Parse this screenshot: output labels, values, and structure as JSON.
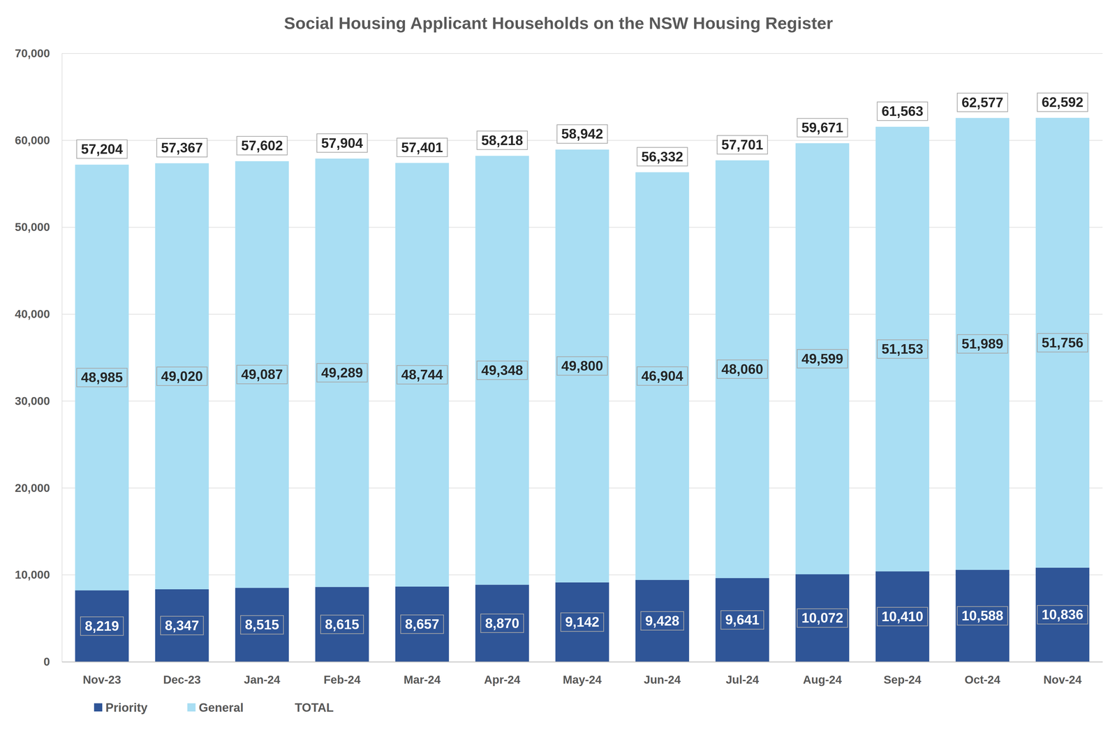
{
  "chart_data": {
    "type": "bar",
    "title": "Social Housing Applicant Households on the NSW Housing Register",
    "categories": [
      "Nov-23",
      "Dec-23",
      "Jan-24",
      "Feb-24",
      "Mar-24",
      "Apr-24",
      "May-24",
      "Jun-24",
      "Jul-24",
      "Aug-24",
      "Sep-24",
      "Oct-24",
      "Nov-24"
    ],
    "series": [
      {
        "name": "Priority",
        "color": "#2f5597",
        "values": [
          8219,
          8347,
          8515,
          8615,
          8657,
          8870,
          9142,
          9428,
          9641,
          10072,
          10410,
          10588,
          10836
        ],
        "value_labels": [
          "8,219",
          "8,347",
          "8,515",
          "8,615",
          "8,657",
          "8,870",
          "9,142",
          "9,428",
          "9,641",
          "10,072",
          "10,410",
          "10,588",
          "10,836"
        ]
      },
      {
        "name": "General",
        "color": "#a9def3",
        "values": [
          48985,
          49020,
          49087,
          49289,
          48744,
          49348,
          49800,
          46904,
          48060,
          49599,
          51153,
          51989,
          51756
        ],
        "value_labels": [
          "48,985",
          "49,020",
          "49,087",
          "49,289",
          "48,744",
          "49,348",
          "49,800",
          "46,904",
          "48,060",
          "49,599",
          "51,153",
          "51,989",
          "51,756"
        ]
      },
      {
        "name": "TOTAL",
        "type": "line",
        "line_style": "none",
        "marker": "none",
        "values": [
          57204,
          57367,
          57602,
          57904,
          57401,
          58218,
          58942,
          56332,
          57701,
          59671,
          61563,
          62577,
          62592
        ],
        "value_labels": [
          "57,204",
          "57,367",
          "57,602",
          "57,904",
          "57,401",
          "58,218",
          "58,942",
          "56,332",
          "57,701",
          "59,671",
          "61,563",
          "62,577",
          "62,592"
        ]
      }
    ],
    "ylim": [
      0,
      70000
    ],
    "yticks": [
      0,
      {
        "value": 10000,
        "label": "10,000"
      },
      {
        "value": 20000,
        "label": "20,000"
      },
      {
        "value": 30000,
        "label": "30,000"
      },
      {
        "value": 40000,
        "label": "40,000"
      },
      {
        "value": 50000,
        "label": "50,000"
      },
      {
        "value": 60000,
        "label": "60,000"
      },
      {
        "value": 70000,
        "label": "70,000"
      }
    ],
    "grid": true,
    "stacked": true,
    "data_labels": true,
    "legend": "bottom-left"
  }
}
